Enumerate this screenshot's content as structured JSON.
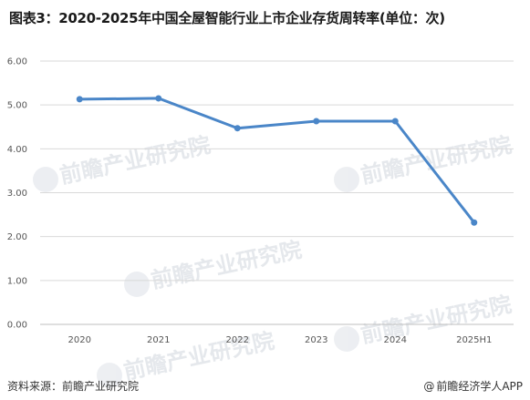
{
  "title": "图表3：2020-2025年中国全屋智能行业上市企业存货周转率(单位：次)",
  "footer": {
    "source": "资料来源：前瞻产业研究院",
    "brand": "前瞻经济学人APP",
    "brand_mark": "@"
  },
  "watermark": {
    "text": "前瞻产业研究院"
  },
  "colors": {
    "line": "#4a86c8",
    "grid": "#d9d9d9",
    "axis": "#bfbfbf"
  },
  "chart_data": {
    "type": "line",
    "title": "图表3：2020-2025年中国全屋智能行业上市企业存货周转率(单位：次)",
    "categories": [
      "2020",
      "2021",
      "2022",
      "2023",
      "2024",
      "2025H1"
    ],
    "series": [
      {
        "values": [
          5.13,
          5.15,
          4.47,
          4.63,
          4.63,
          2.32
        ]
      }
    ],
    "ylim": [
      0,
      6
    ],
    "yticks": [
      "0.00",
      "1.00",
      "2.00",
      "3.00",
      "4.00",
      "5.00",
      "6.00"
    ],
    "ytick_values": [
      0,
      1,
      2,
      3,
      4,
      5,
      6
    ],
    "grid": true,
    "legend": "none"
  }
}
